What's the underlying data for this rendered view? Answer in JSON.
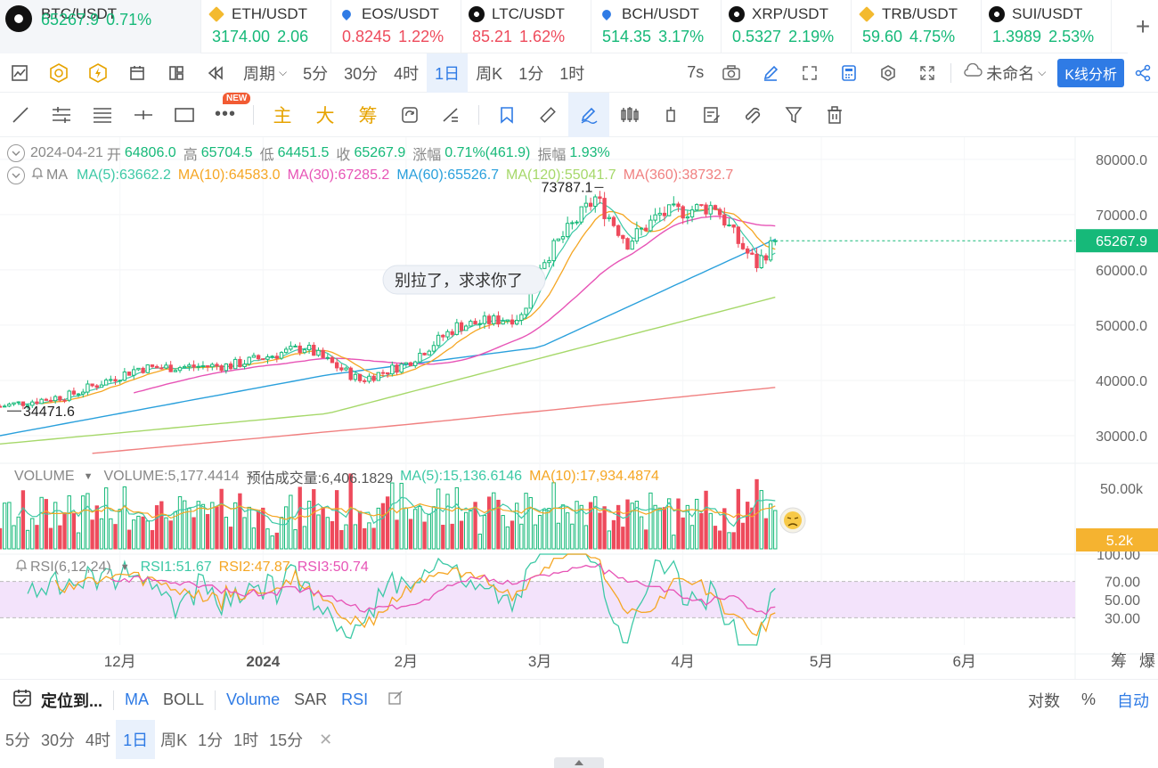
{
  "tickers": [
    {
      "name": "BTC/USDT",
      "price": "65267.9",
      "change": "0.71%",
      "dir": "up",
      "icon_color": "#111111",
      "active": true
    },
    {
      "name": "ETH/USDT",
      "price": "3174.00",
      "change": "2.06",
      "dir": "up",
      "icon_color": "#f3ba2f"
    },
    {
      "name": "EOS/USDT",
      "price": "0.8245",
      "change": "1.22%",
      "dir": "down",
      "icon_color": "#2f7be5"
    },
    {
      "name": "LTC/USDT",
      "price": "85.21",
      "change": "1.62%",
      "dir": "down",
      "icon_color": "#111111"
    },
    {
      "name": "BCH/USDT",
      "price": "514.35",
      "change": "3.17%",
      "dir": "up",
      "icon_color": "#2f7be5"
    },
    {
      "name": "XRP/USDT",
      "price": "0.5327",
      "change": "2.19%",
      "dir": "up",
      "icon_color": "#111111"
    },
    {
      "name": "TRB/USDT",
      "price": "59.60",
      "change": "4.75%",
      "dir": "up",
      "icon_color": "#f3ba2f"
    },
    {
      "name": "SUI/USDT",
      "price": "1.3989",
      "change": "2.53%",
      "dir": "up",
      "icon_color": "#111111"
    }
  ],
  "toolbar": {
    "period_label": "周期",
    "periods": [
      "5分",
      "30分",
      "4时",
      "1日",
      "周K",
      "1分",
      "1时"
    ],
    "active_period": "1日",
    "countdown": "7s",
    "layout_name": "未命名",
    "kline_btn": "K线分析"
  },
  "drawing_tools": {
    "new_badge": "NEW",
    "indicators": [
      "主",
      "大",
      "筹"
    ]
  },
  "ohlc": {
    "date": "2024-04-21",
    "open_label": "开",
    "open": "64806.0",
    "high_label": "高",
    "high": "65704.5",
    "low_label": "低",
    "low": "64451.5",
    "close_label": "收",
    "close": "65267.9",
    "change_label": "涨幅",
    "change": "0.71%(461.9)",
    "amp_label": "振幅",
    "amp": "1.93%"
  },
  "ma_legend": {
    "label": "MA",
    "items": [
      {
        "text": "MA(5):63662.2",
        "color": "#3dc9a6"
      },
      {
        "text": "MA(10):64583.0",
        "color": "#f5a623"
      },
      {
        "text": "MA(30):67285.2",
        "color": "#e754b6"
      },
      {
        "text": "MA(60):65526.7",
        "color": "#2aa0dc"
      },
      {
        "text": "MA(120):55041.7",
        "color": "#a6d86a"
      },
      {
        "text": "MA(360):38732.7",
        "color": "#f08080"
      }
    ]
  },
  "price_axis": {
    "ticks": [
      "80000.0",
      "70000.0",
      "60000.0",
      "50000.0",
      "40000.0",
      "30000.0"
    ],
    "last_price": "65267.9",
    "last_price_color": "#16b979"
  },
  "annotations": {
    "high_label": "73787.1",
    "low_label": "34471.6",
    "comment": "别拉了，求求你了"
  },
  "volume_legend": {
    "label": "VOLUME",
    "volume": "VOLUME:5,177.4414",
    "estimate": "预估成交量:6,406.1829",
    "ma5": "MA(5):15,136.6146",
    "ma10": "MA(10):17,934.4874",
    "axis_tick": "50.00k",
    "last_volume": "5.2k",
    "last_volume_color": "#f5b330"
  },
  "rsi_legend": {
    "label": "RSI(6,12,24)",
    "rsi1": "RSI1:51.67",
    "rsi2": "RSI2:47.87",
    "rsi3": "RSI3:50.74",
    "ticks": [
      "100.00",
      "70.00",
      "50.00",
      "30.00"
    ]
  },
  "time_axis": {
    "labels": [
      "12月",
      "2024",
      "2月",
      "3月",
      "4月",
      "5月",
      "6月"
    ],
    "right_labels": [
      "筹",
      "爆"
    ]
  },
  "bottom_bar": {
    "locate": "定位到...",
    "main_indicators": [
      "MA",
      "BOLL"
    ],
    "sub_indicators": [
      "Volume",
      "SAR",
      "RSI"
    ],
    "scale_log": "对数",
    "scale_pct": "%",
    "scale_auto": "自动"
  },
  "bottom_periods": {
    "items": [
      "5分",
      "30分",
      "4时",
      "1日",
      "周K",
      "1分",
      "1时",
      "15分"
    ],
    "active": "1日"
  },
  "chart_data": {
    "type": "candlestick",
    "title": "BTC/USDT",
    "x_range": [
      "2023-11-05",
      "2024-06-25"
    ],
    "price_range": [
      25000,
      84000
    ],
    "log_scale": false,
    "grid": true,
    "close_anchors": [
      [
        "2023-11-05",
        35300
      ],
      [
        "2023-11-20",
        37300
      ],
      [
        "2023-12-05",
        42200
      ],
      [
        "2023-12-25",
        42700
      ],
      [
        "2024-01-10",
        46000
      ],
      [
        "2024-01-22",
        40000
      ],
      [
        "2024-02-01",
        43000
      ],
      [
        "2024-02-12",
        49800
      ],
      [
        "2024-02-26",
        51600
      ],
      [
        "2024-03-01",
        61000
      ],
      [
        "2024-03-13",
        73000
      ],
      [
        "2024-03-20",
        65000
      ],
      [
        "2024-03-27",
        70000
      ],
      [
        "2024-04-08",
        71600
      ],
      [
        "2024-04-13",
        65000
      ],
      [
        "2024-04-17",
        61000
      ],
      [
        "2024-04-21",
        65267.9
      ]
    ],
    "ma_anchors": {
      "MA(60)": [
        [
          "2023-11-05",
          30000
        ],
        [
          "2024-01-15",
          41000
        ],
        [
          "2024-03-01",
          46000
        ],
        [
          "2024-04-21",
          65526.7
        ]
      ],
      "MA(120)": [
        [
          "2023-11-05",
          28500
        ],
        [
          "2024-01-15",
          34000
        ],
        [
          "2024-03-01",
          44000
        ],
        [
          "2024-04-21",
          55041.7
        ]
      ],
      "MA(360)": [
        [
          "2023-11-25",
          26800
        ],
        [
          "2024-02-01",
          32000
        ],
        [
          "2024-04-21",
          38732.7
        ]
      ]
    },
    "rsi_range": [
      0,
      100
    ],
    "rsi_band": [
      30,
      70
    ]
  }
}
